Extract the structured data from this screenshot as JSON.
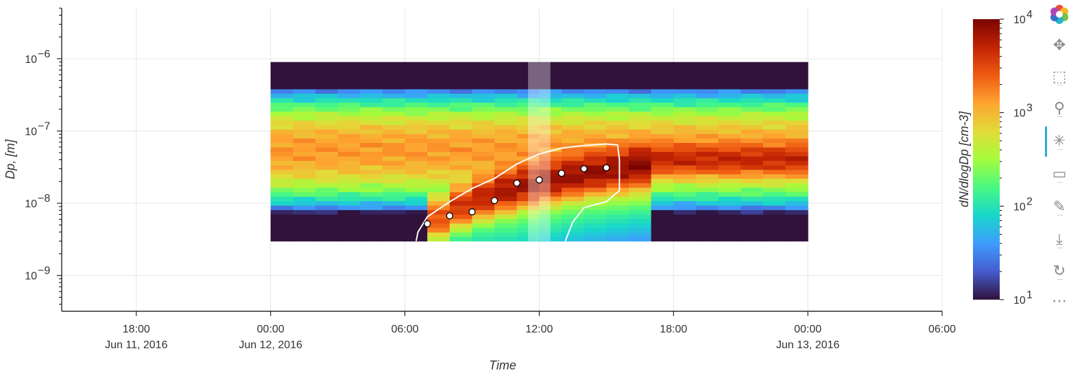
{
  "chart_data": {
    "type": "heatmap",
    "title": "",
    "xlabel": "Time",
    "ylabel": "Dp, [m]",
    "colorbar_label": "dN/dlogDp [cm-3]",
    "colorbar_range": [
      10,
      10000
    ],
    "colorbar_scale": "log",
    "colormap": "turbo",
    "colorbar_ticks": [
      {
        "value": 10,
        "base": "10",
        "exp": "1"
      },
      {
        "value": 100,
        "base": "10",
        "exp": "2"
      },
      {
        "value": 1000,
        "base": "10",
        "exp": "3"
      },
      {
        "value": 10000,
        "base": "10",
        "exp": "4"
      }
    ],
    "x_range": [
      "2016-06-11T14:40",
      "2016-06-13T06:00"
    ],
    "y_range": [
      3.2e-10,
      5e-06
    ],
    "y_scale": "log",
    "grid": true,
    "x_ticks": [
      {
        "value": "2016-06-11T18:00",
        "label": "18:00",
        "sub": "Jun 11, 2016"
      },
      {
        "value": "2016-06-12T00:00",
        "label": "00:00",
        "sub": "Jun 12, 2016"
      },
      {
        "value": "2016-06-12T06:00",
        "label": "06:00",
        "sub": ""
      },
      {
        "value": "2016-06-12T12:00",
        "label": "12:00",
        "sub": ""
      },
      {
        "value": "2016-06-12T18:00",
        "label": "18:00",
        "sub": ""
      },
      {
        "value": "2016-06-13T00:00",
        "label": "00:00",
        "sub": "Jun 13, 2016"
      },
      {
        "value": "2016-06-13T06:00",
        "label": "06:00",
        "sub": ""
      }
    ],
    "y_ticks": [
      {
        "value": 1e-09,
        "base": "10",
        "exp": "−9"
      },
      {
        "value": 1e-08,
        "base": "10",
        "exp": "−8"
      },
      {
        "value": 1e-07,
        "base": "10",
        "exp": "−7"
      },
      {
        "value": 1e-06,
        "base": "10",
        "exp": "−6"
      }
    ],
    "heatmap": {
      "time_start": "2016-06-12T00:00",
      "time_end": "2016-06-12T23:00",
      "time_step_hours": 1,
      "dp_min": 3e-09,
      "dp_max": 9e-07,
      "dp_bins": 40,
      "background_mode_dp": 5.5e-08,
      "background_peak_conc": 1400,
      "event": {
        "start": "2016-06-12T06:30",
        "end": "2016-06-12T15:40",
        "start_dp": 5e-09,
        "growth_rate_dp_per_hour": 3e-09,
        "peak_conc": 6500
      }
    },
    "highlight_band": {
      "start": "2016-06-12T11:30",
      "end": "2016-06-12T12:30"
    },
    "mode_points": [
      {
        "time": "2016-06-12T07:00",
        "dp": 5.2e-09
      },
      {
        "time": "2016-06-12T08:00",
        "dp": 6.7e-09
      },
      {
        "time": "2016-06-12T09:00",
        "dp": 7.6e-09
      },
      {
        "time": "2016-06-12T10:00",
        "dp": 1.09e-08
      },
      {
        "time": "2016-06-12T11:00",
        "dp": 1.9e-08
      },
      {
        "time": "2016-06-12T12:00",
        "dp": 2.1e-08
      },
      {
        "time": "2016-06-12T13:00",
        "dp": 2.6e-08
      },
      {
        "time": "2016-06-12T14:00",
        "dp": 3e-08
      },
      {
        "time": "2016-06-12T15:00",
        "dp": 3.1e-08
      }
    ],
    "event_contour": [
      [
        "2016-06-12T06:30",
        3e-09
      ],
      [
        "2016-06-12T06:35",
        4e-09
      ],
      [
        "2016-06-12T07:00",
        6.5e-09
      ],
      [
        "2016-06-12T08:00",
        1.05e-08
      ],
      [
        "2016-06-12T09:00",
        1.6e-08
      ],
      [
        "2016-06-12T10:00",
        2.2e-08
      ],
      [
        "2016-06-12T11:00",
        3.5e-08
      ],
      [
        "2016-06-12T12:00",
        4.8e-08
      ],
      [
        "2016-06-12T13:00",
        5.8e-08
      ],
      [
        "2016-06-12T14:00",
        6.3e-08
      ],
      [
        "2016-06-12T15:00",
        6.6e-08
      ],
      [
        "2016-06-12T15:30",
        6.4e-08
      ],
      [
        "2016-06-12T15:35",
        4e-08
      ],
      [
        "2016-06-12T15:35",
        1.5e-08
      ],
      [
        "2016-06-12T15:00",
        1.05e-08
      ],
      [
        "2016-06-12T14:00",
        8.7e-09
      ],
      [
        "2016-06-12T13:30",
        5.5e-09
      ],
      [
        "2016-06-12T13:15",
        3.5e-09
      ],
      [
        "2016-06-12T13:10",
        3e-09
      ]
    ]
  },
  "toolbar": {
    "tools": [
      {
        "icon": "bokeh-logo-icon"
      },
      {
        "icon": "pan-icon"
      },
      {
        "icon": "box-zoom-icon"
      },
      {
        "icon": "wheel-zoom-icon"
      },
      {
        "icon": "tap-icon",
        "active": true
      },
      {
        "icon": "box-select-icon"
      },
      {
        "icon": "freehand-draw-icon"
      },
      {
        "icon": "save-icon"
      },
      {
        "icon": "reset-icon"
      },
      {
        "icon": "more-icon"
      }
    ]
  }
}
